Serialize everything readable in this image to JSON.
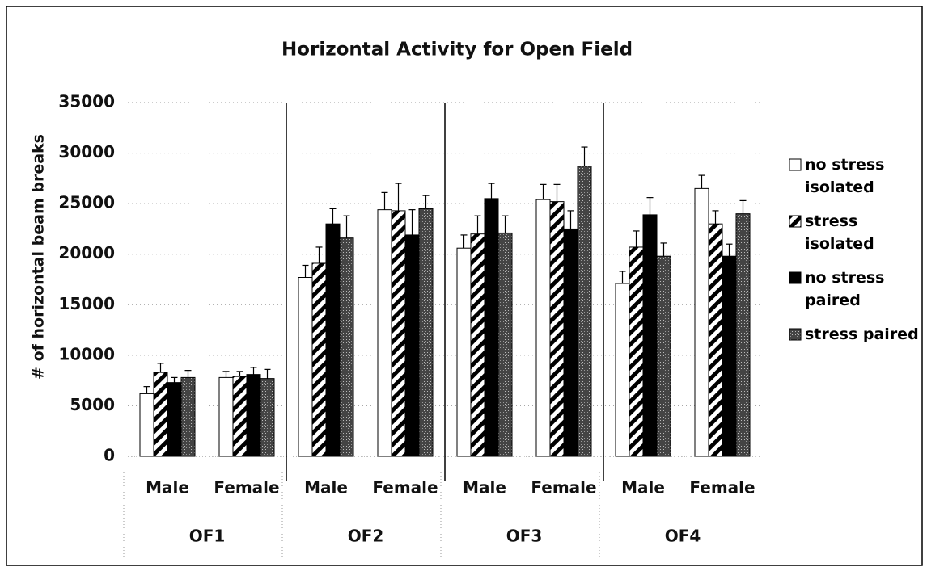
{
  "chart_data": {
    "type": "bar",
    "title": "Horizontal Activity for Open Field",
    "y_label": "# of horizontal beam breaks",
    "categories": [
      "Male",
      "Female",
      "Male",
      "Female",
      "Male",
      "Female",
      "Male",
      "Female"
    ],
    "groups": [
      "OF1",
      "OF2",
      "OF3",
      "OF4"
    ],
    "ylim": [
      0,
      35000
    ],
    "yticks": [
      0,
      5000,
      10000,
      15000,
      20000,
      25000,
      30000,
      35000
    ],
    "grid": true,
    "legend": "right",
    "series": [
      {
        "name": "no stress isolated",
        "color": "#ffffff",
        "pattern": "solid",
        "values": [
          6200,
          7800,
          17700,
          24400,
          20600,
          25400,
          17100,
          26500
        ],
        "errors": [
          700,
          600,
          1200,
          1700,
          1300,
          1500,
          1200,
          1300
        ]
      },
      {
        "name": "stress isolated",
        "color": "#000000",
        "pattern": "hatch",
        "values": [
          8300,
          7900,
          19100,
          24300,
          22000,
          25200,
          20700,
          23000
        ],
        "errors": [
          900,
          500,
          1600,
          2700,
          1800,
          1700,
          1600,
          1300
        ]
      },
      {
        "name": "no stress paired",
        "color": "#000000",
        "pattern": "solid",
        "values": [
          7300,
          8100,
          23000,
          21900,
          25500,
          22500,
          23900,
          19800
        ],
        "errors": [
          500,
          700,
          1500,
          2500,
          1500,
          1800,
          1700,
          1200
        ]
      },
      {
        "name": "stress paired",
        "color": "#333333",
        "pattern": "stipple",
        "values": [
          7800,
          7700,
          21600,
          24500,
          22100,
          28700,
          19800,
          24000
        ],
        "errors": [
          700,
          900,
          2200,
          1300,
          1700,
          1900,
          1300,
          1300
        ]
      }
    ]
  }
}
